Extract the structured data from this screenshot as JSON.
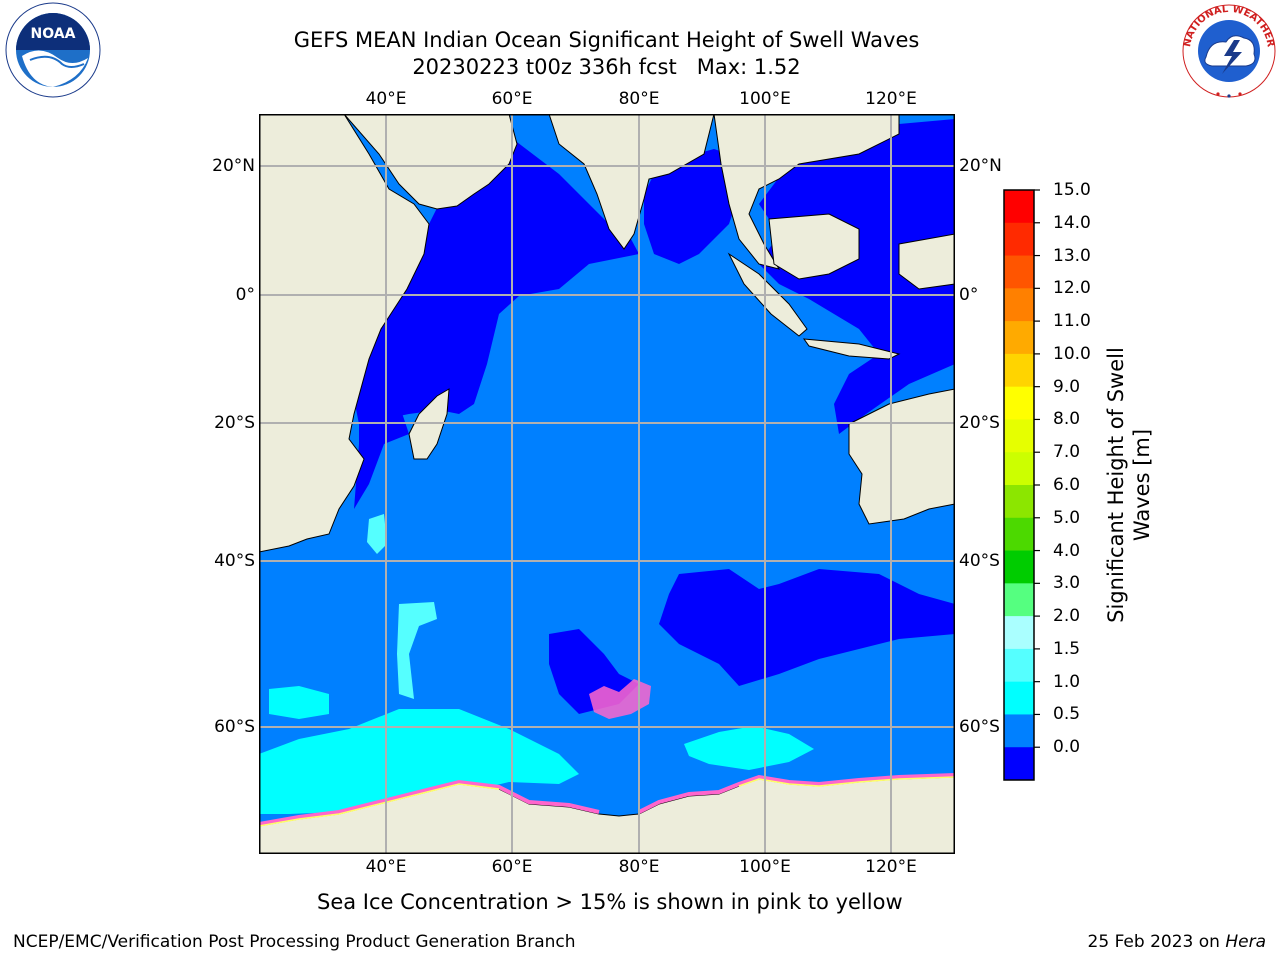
{
  "title": {
    "line1": "GEFS MEAN Indian Ocean Significant Height of Swell Waves",
    "line2": "20230223 t00z 336h fcst   Max: 1.52"
  },
  "axes": {
    "lon_ticks": [
      "40°E",
      "60°E",
      "80°E",
      "100°E",
      "120°E"
    ],
    "lat_ticks_left": [
      "20°N",
      "0°",
      "20°S",
      "40°S",
      "60°S"
    ],
    "lat_ticks_right": [
      "20°N",
      "0°",
      "20°S",
      "40°S",
      "60°S"
    ],
    "lon_range": [
      20,
      130
    ],
    "lat_range": [
      -73,
      27
    ]
  },
  "colorbar": {
    "title_line1": "Significant Height of Swell",
    "title_line2": "Waves [m]",
    "labels": [
      "15.0",
      "14.0",
      "13.0",
      "12.0",
      "11.0",
      "10.0",
      "9.0",
      "8.0",
      "7.0",
      "6.0",
      "5.0",
      "4.0",
      "3.0",
      "2.0",
      "1.5",
      "1.0",
      "0.5",
      "0.0"
    ],
    "colors": [
      "#ff0000",
      "#ff2a00",
      "#ff5500",
      "#ff8000",
      "#ffaa00",
      "#ffd400",
      "#ffff00",
      "#e6ff00",
      "#ccff00",
      "#8ce600",
      "#4cd900",
      "#00cc00",
      "#55ff80",
      "#aaffff",
      "#55ffff",
      "#00ffff",
      "#0080ff",
      "#0000ff"
    ]
  },
  "legend_note": "Sea Ice Concentration > 15% is shown in pink to yellow",
  "footer": {
    "left": "NCEP/EMC/Verification Post Processing Product Generation Branch",
    "right_prefix": "25 Feb 2023 on ",
    "right_host": "Hera"
  },
  "logos": {
    "noaa_text": "NOAA",
    "nws_text": "NATIONAL WEATHER SERVICE"
  },
  "colors": {
    "land": "#ededdb",
    "ocean_mid": "#0080ff",
    "ocean_low": "#0000ff",
    "ocean_cyan": "#00ffff",
    "ocean_lightcyan": "#55ffff",
    "sea_ice": "#ff66cc",
    "grid": "#b0b0b0"
  }
}
